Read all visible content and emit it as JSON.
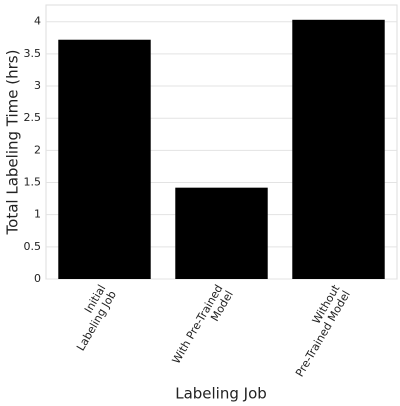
{
  "chart_data": {
    "type": "bar",
    "categories": [
      "Initial\nLabeling Job",
      "With Pre-Trained\nModel",
      "Without\nPre-Trained Model"
    ],
    "values": [
      3.72,
      1.42,
      4.03
    ],
    "color": "#000000",
    "xlabel": "Labeling Job",
    "ylabel": "Total Labeling Time (hrs)",
    "ylim": [
      0,
      4.26
    ],
    "yticks": [
      0,
      0.5,
      1,
      1.5,
      2,
      2.5,
      3,
      3.5,
      4
    ],
    "grid": true
  }
}
